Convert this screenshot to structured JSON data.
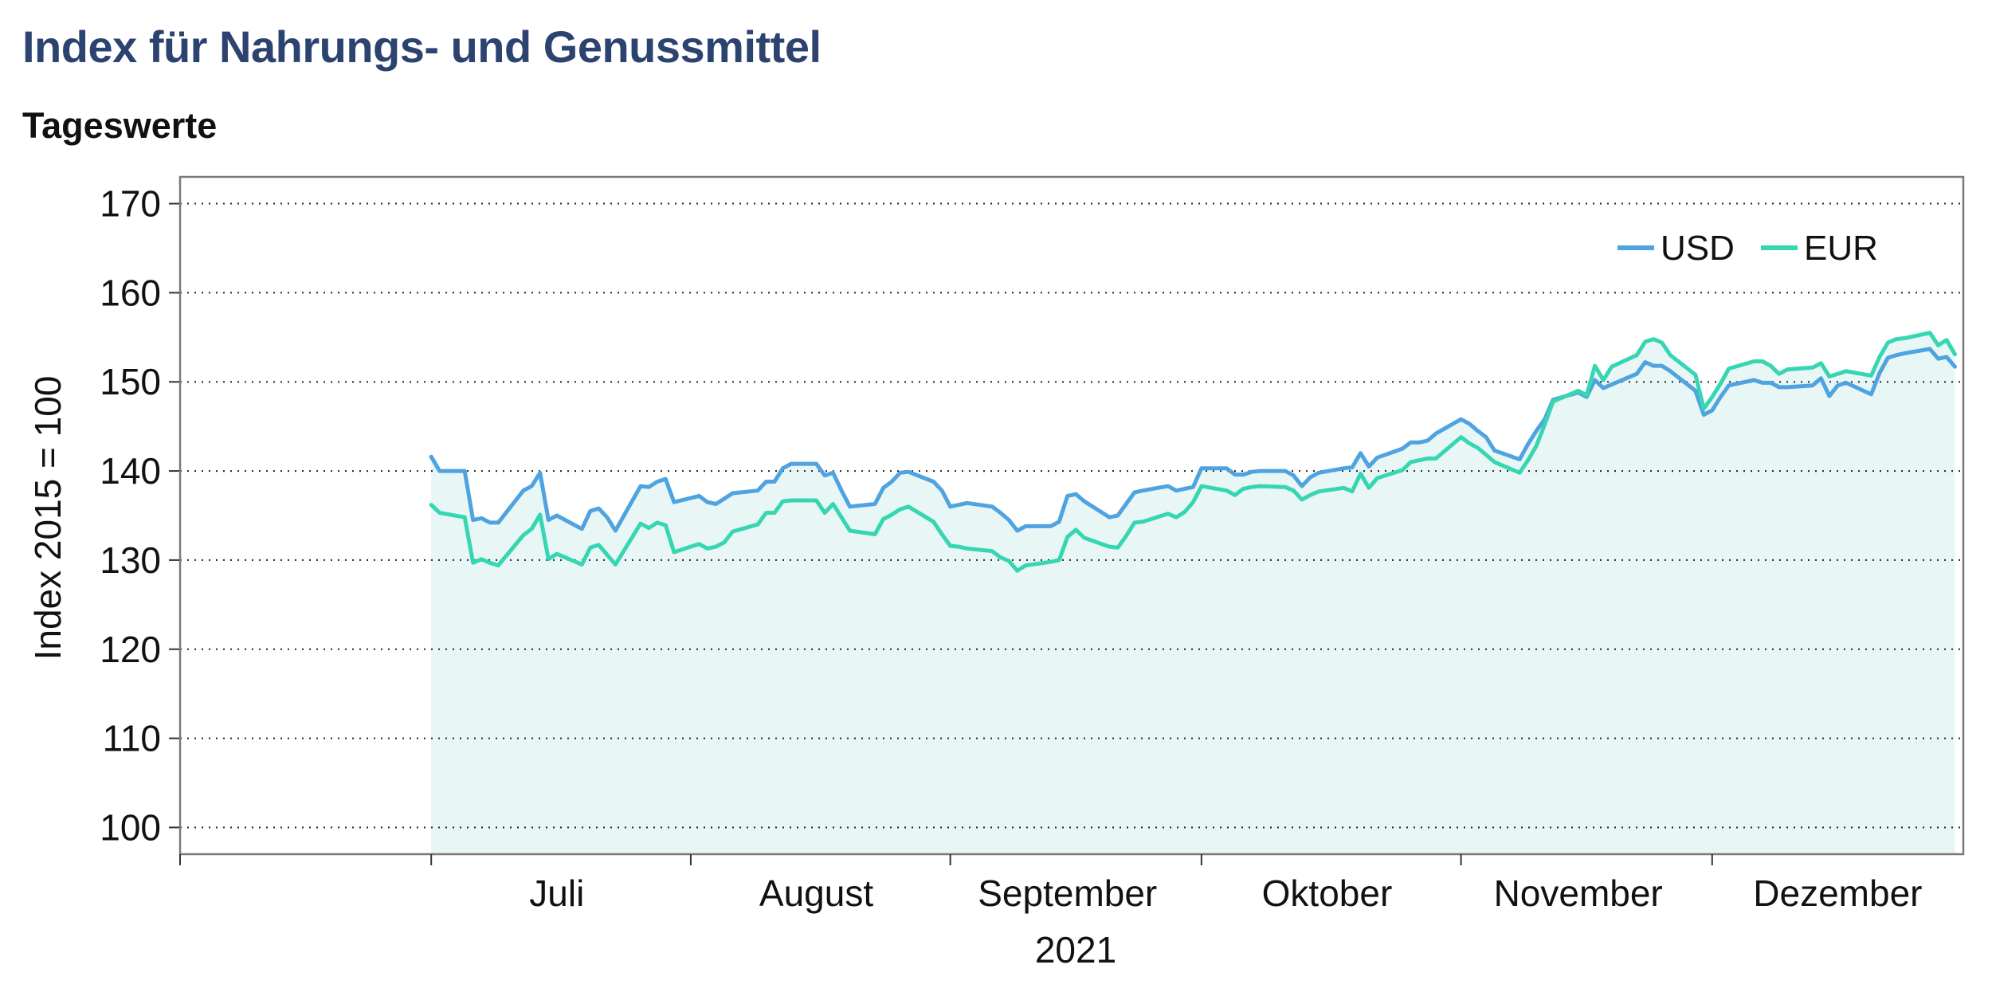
{
  "header": {
    "title": "Index für Nahrungs- und Genussmittel",
    "subtitle": "Tageswerte"
  },
  "chart_data": {
    "type": "line",
    "title": "Index für Nahrungs- und Genussmittel",
    "subtitle": "Tageswerte",
    "ylabel": "Index 2015 = 100",
    "xlabel": "2021",
    "ylim": [
      97,
      173
    ],
    "yticks": [
      100,
      110,
      120,
      130,
      140,
      150,
      160,
      170
    ],
    "x_range": [
      "2021-06-01",
      "2021-12-31"
    ],
    "month_labels": [
      {
        "label": "Juli",
        "date": "2021-07-16"
      },
      {
        "label": "August",
        "date": "2021-08-16"
      },
      {
        "label": "September",
        "date": "2021-09-15"
      },
      {
        "label": "Oktober",
        "date": "2021-10-16"
      },
      {
        "label": "November",
        "date": "2021-11-15"
      },
      {
        "label": "Dezember",
        "date": "2021-12-16"
      }
    ],
    "legend_position": "top-right",
    "grid": "horizontal dotted",
    "colors": {
      "USD": "#4ea3e0",
      "EUR": "#36d6b2",
      "fill": "#e8f6f6"
    },
    "series": [
      {
        "name": "USD",
        "points": [
          [
            "2021-07-01",
            141.6
          ],
          [
            "2021-07-02",
            140.0
          ],
          [
            "2021-07-05",
            140.0
          ],
          [
            "2021-07-06",
            134.5
          ],
          [
            "2021-07-07",
            134.7
          ],
          [
            "2021-07-08",
            134.2
          ],
          [
            "2021-07-09",
            134.2
          ],
          [
            "2021-07-12",
            137.8
          ],
          [
            "2021-07-13",
            138.3
          ],
          [
            "2021-07-14",
            139.8
          ],
          [
            "2021-07-15",
            134.5
          ],
          [
            "2021-07-16",
            135.0
          ],
          [
            "2021-07-19",
            133.5
          ],
          [
            "2021-07-20",
            135.5
          ],
          [
            "2021-07-21",
            135.8
          ],
          [
            "2021-07-22",
            134.8
          ],
          [
            "2021-07-23",
            133.3
          ],
          [
            "2021-07-26",
            138.3
          ],
          [
            "2021-07-27",
            138.2
          ],
          [
            "2021-07-28",
            138.8
          ],
          [
            "2021-07-29",
            139.1
          ],
          [
            "2021-07-30",
            136.5
          ],
          [
            "2021-08-02",
            137.2
          ],
          [
            "2021-08-03",
            136.5
          ],
          [
            "2021-08-04",
            136.3
          ],
          [
            "2021-08-05",
            136.9
          ],
          [
            "2021-08-06",
            137.5
          ],
          [
            "2021-08-09",
            137.8
          ],
          [
            "2021-08-10",
            138.8
          ],
          [
            "2021-08-11",
            138.8
          ],
          [
            "2021-08-12",
            140.3
          ],
          [
            "2021-08-13",
            140.8
          ],
          [
            "2021-08-16",
            140.8
          ],
          [
            "2021-08-17",
            139.5
          ],
          [
            "2021-08-18",
            139.8
          ],
          [
            "2021-08-19",
            137.8
          ],
          [
            "2021-08-20",
            136.0
          ],
          [
            "2021-08-23",
            136.3
          ],
          [
            "2021-08-24",
            138.1
          ],
          [
            "2021-08-25",
            138.8
          ],
          [
            "2021-08-26",
            139.8
          ],
          [
            "2021-08-27",
            139.9
          ],
          [
            "2021-08-30",
            138.8
          ],
          [
            "2021-08-31",
            137.8
          ],
          [
            "2021-09-01",
            136.0
          ],
          [
            "2021-09-02",
            136.2
          ],
          [
            "2021-09-03",
            136.4
          ],
          [
            "2021-09-06",
            136.0
          ],
          [
            "2021-09-07",
            135.3
          ],
          [
            "2021-09-08",
            134.5
          ],
          [
            "2021-09-09",
            133.3
          ],
          [
            "2021-09-10",
            133.8
          ],
          [
            "2021-09-13",
            133.8
          ],
          [
            "2021-09-14",
            134.3
          ],
          [
            "2021-09-15",
            137.2
          ],
          [
            "2021-09-16",
            137.4
          ],
          [
            "2021-09-17",
            136.6
          ],
          [
            "2021-09-20",
            134.8
          ],
          [
            "2021-09-21",
            135.0
          ],
          [
            "2021-09-22",
            136.3
          ],
          [
            "2021-09-23",
            137.6
          ],
          [
            "2021-09-24",
            137.8
          ],
          [
            "2021-09-27",
            138.3
          ],
          [
            "2021-09-28",
            137.8
          ],
          [
            "2021-09-29",
            138.0
          ],
          [
            "2021-09-30",
            138.2
          ],
          [
            "2021-10-01",
            140.3
          ],
          [
            "2021-10-04",
            140.3
          ],
          [
            "2021-10-05",
            139.6
          ],
          [
            "2021-10-06",
            139.6
          ],
          [
            "2021-10-07",
            139.9
          ],
          [
            "2021-10-08",
            140.0
          ],
          [
            "2021-10-11",
            140.0
          ],
          [
            "2021-10-12",
            139.5
          ],
          [
            "2021-10-13",
            138.3
          ],
          [
            "2021-10-14",
            139.3
          ],
          [
            "2021-10-15",
            139.8
          ],
          [
            "2021-10-18",
            140.3
          ],
          [
            "2021-10-19",
            140.4
          ],
          [
            "2021-10-20",
            142.0
          ],
          [
            "2021-10-21",
            140.5
          ],
          [
            "2021-10-22",
            141.5
          ],
          [
            "2021-10-25",
            142.5
          ],
          [
            "2021-10-26",
            143.2
          ],
          [
            "2021-10-27",
            143.2
          ],
          [
            "2021-10-28",
            143.4
          ],
          [
            "2021-10-29",
            144.2
          ],
          [
            "2021-11-01",
            145.8
          ],
          [
            "2021-11-02",
            145.3
          ],
          [
            "2021-11-03",
            144.5
          ],
          [
            "2021-11-04",
            143.8
          ],
          [
            "2021-11-05",
            142.3
          ],
          [
            "2021-11-08",
            141.3
          ],
          [
            "2021-11-09",
            143.0
          ],
          [
            "2021-11-10",
            144.5
          ],
          [
            "2021-11-11",
            145.8
          ],
          [
            "2021-11-12",
            148.0
          ],
          [
            "2021-11-15",
            148.8
          ],
          [
            "2021-11-16",
            148.3
          ],
          [
            "2021-11-17",
            150.2
          ],
          [
            "2021-11-18",
            149.3
          ],
          [
            "2021-11-19",
            149.7
          ],
          [
            "2021-11-22",
            150.9
          ],
          [
            "2021-11-23",
            152.2
          ],
          [
            "2021-11-24",
            151.8
          ],
          [
            "2021-11-25",
            151.8
          ],
          [
            "2021-11-26",
            151.2
          ],
          [
            "2021-11-29",
            149.0
          ],
          [
            "2021-11-30",
            146.3
          ],
          [
            "2021-12-01",
            146.8
          ],
          [
            "2021-12-02",
            148.3
          ],
          [
            "2021-12-03",
            149.6
          ],
          [
            "2021-12-06",
            150.2
          ],
          [
            "2021-12-07",
            149.9
          ],
          [
            "2021-12-08",
            149.9
          ],
          [
            "2021-12-09",
            149.4
          ],
          [
            "2021-12-10",
            149.4
          ],
          [
            "2021-12-13",
            149.6
          ],
          [
            "2021-12-14",
            150.4
          ],
          [
            "2021-12-15",
            148.4
          ],
          [
            "2021-12-16",
            149.6
          ],
          [
            "2021-12-17",
            149.9
          ],
          [
            "2021-12-20",
            148.6
          ],
          [
            "2021-12-21",
            151.0
          ],
          [
            "2021-12-22",
            152.7
          ],
          [
            "2021-12-23",
            153.0
          ],
          [
            "2021-12-24",
            153.2
          ],
          [
            "2021-12-27",
            153.7
          ],
          [
            "2021-12-28",
            152.6
          ],
          [
            "2021-12-29",
            152.8
          ],
          [
            "2021-12-30",
            151.7
          ]
        ]
      },
      {
        "name": "EUR",
        "points": [
          [
            "2021-07-01",
            136.2
          ],
          [
            "2021-07-02",
            135.3
          ],
          [
            "2021-07-05",
            134.8
          ],
          [
            "2021-07-06",
            129.7
          ],
          [
            "2021-07-07",
            130.1
          ],
          [
            "2021-07-08",
            129.7
          ],
          [
            "2021-07-09",
            129.4
          ],
          [
            "2021-07-12",
            132.8
          ],
          [
            "2021-07-13",
            133.5
          ],
          [
            "2021-07-14",
            135.1
          ],
          [
            "2021-07-15",
            130.1
          ],
          [
            "2021-07-16",
            130.7
          ],
          [
            "2021-07-19",
            129.5
          ],
          [
            "2021-07-20",
            131.4
          ],
          [
            "2021-07-21",
            131.7
          ],
          [
            "2021-07-22",
            130.6
          ],
          [
            "2021-07-23",
            129.5
          ],
          [
            "2021-07-26",
            134.1
          ],
          [
            "2021-07-27",
            133.6
          ],
          [
            "2021-07-28",
            134.2
          ],
          [
            "2021-07-29",
            133.9
          ],
          [
            "2021-07-30",
            130.9
          ],
          [
            "2021-08-02",
            131.8
          ],
          [
            "2021-08-03",
            131.3
          ],
          [
            "2021-08-04",
            131.5
          ],
          [
            "2021-08-05",
            132.0
          ],
          [
            "2021-08-06",
            133.2
          ],
          [
            "2021-08-09",
            134.0
          ],
          [
            "2021-08-10",
            135.3
          ],
          [
            "2021-08-11",
            135.3
          ],
          [
            "2021-08-12",
            136.6
          ],
          [
            "2021-08-13",
            136.7
          ],
          [
            "2021-08-16",
            136.7
          ],
          [
            "2021-08-17",
            135.3
          ],
          [
            "2021-08-18",
            136.3
          ],
          [
            "2021-08-19",
            134.8
          ],
          [
            "2021-08-20",
            133.3
          ],
          [
            "2021-08-23",
            132.9
          ],
          [
            "2021-08-24",
            134.6
          ],
          [
            "2021-08-25",
            135.1
          ],
          [
            "2021-08-26",
            135.7
          ],
          [
            "2021-08-27",
            136.0
          ],
          [
            "2021-08-30",
            134.3
          ],
          [
            "2021-08-31",
            132.9
          ],
          [
            "2021-09-01",
            131.6
          ],
          [
            "2021-09-02",
            131.5
          ],
          [
            "2021-09-03",
            131.3
          ],
          [
            "2021-09-06",
            131.0
          ],
          [
            "2021-09-07",
            130.3
          ],
          [
            "2021-09-08",
            129.9
          ],
          [
            "2021-09-09",
            128.8
          ],
          [
            "2021-09-10",
            129.4
          ],
          [
            "2021-09-13",
            129.8
          ],
          [
            "2021-09-14",
            130.0
          ],
          [
            "2021-09-15",
            132.6
          ],
          [
            "2021-09-16",
            133.4
          ],
          [
            "2021-09-17",
            132.5
          ],
          [
            "2021-09-20",
            131.5
          ],
          [
            "2021-09-21",
            131.4
          ],
          [
            "2021-09-22",
            132.7
          ],
          [
            "2021-09-23",
            134.2
          ],
          [
            "2021-09-24",
            134.3
          ],
          [
            "2021-09-27",
            135.2
          ],
          [
            "2021-09-28",
            134.8
          ],
          [
            "2021-09-29",
            135.4
          ],
          [
            "2021-09-30",
            136.5
          ],
          [
            "2021-10-01",
            138.3
          ],
          [
            "2021-10-04",
            137.8
          ],
          [
            "2021-10-05",
            137.3
          ],
          [
            "2021-10-06",
            138.0
          ],
          [
            "2021-10-07",
            138.2
          ],
          [
            "2021-10-08",
            138.3
          ],
          [
            "2021-10-11",
            138.2
          ],
          [
            "2021-10-12",
            137.8
          ],
          [
            "2021-10-13",
            136.8
          ],
          [
            "2021-10-14",
            137.3
          ],
          [
            "2021-10-15",
            137.7
          ],
          [
            "2021-10-18",
            138.1
          ],
          [
            "2021-10-19",
            137.7
          ],
          [
            "2021-10-20",
            139.7
          ],
          [
            "2021-10-21",
            138.1
          ],
          [
            "2021-10-22",
            139.2
          ],
          [
            "2021-10-25",
            140.1
          ],
          [
            "2021-10-26",
            141.0
          ],
          [
            "2021-10-27",
            141.2
          ],
          [
            "2021-10-28",
            141.4
          ],
          [
            "2021-10-29",
            141.4
          ],
          [
            "2021-11-01",
            143.8
          ],
          [
            "2021-11-02",
            143.1
          ],
          [
            "2021-11-03",
            142.6
          ],
          [
            "2021-11-04",
            141.8
          ],
          [
            "2021-11-05",
            141.0
          ],
          [
            "2021-11-08",
            139.8
          ],
          [
            "2021-11-09",
            141.2
          ],
          [
            "2021-11-10",
            142.8
          ],
          [
            "2021-11-11",
            145.2
          ],
          [
            "2021-11-12",
            147.8
          ],
          [
            "2021-11-15",
            149.0
          ],
          [
            "2021-11-16",
            148.5
          ],
          [
            "2021-11-17",
            151.8
          ],
          [
            "2021-11-18",
            150.2
          ],
          [
            "2021-11-19",
            151.7
          ],
          [
            "2021-11-22",
            153.0
          ],
          [
            "2021-11-23",
            154.5
          ],
          [
            "2021-11-24",
            154.8
          ],
          [
            "2021-11-25",
            154.4
          ],
          [
            "2021-11-26",
            153.0
          ],
          [
            "2021-11-29",
            150.8
          ],
          [
            "2021-11-30",
            147.0
          ],
          [
            "2021-12-01",
            148.3
          ],
          [
            "2021-12-02",
            149.8
          ],
          [
            "2021-12-03",
            151.5
          ],
          [
            "2021-12-06",
            152.3
          ],
          [
            "2021-12-07",
            152.3
          ],
          [
            "2021-12-08",
            151.8
          ],
          [
            "2021-12-09",
            150.9
          ],
          [
            "2021-12-10",
            151.4
          ],
          [
            "2021-12-13",
            151.6
          ],
          [
            "2021-12-14",
            152.1
          ],
          [
            "2021-12-15",
            150.6
          ],
          [
            "2021-12-16",
            150.9
          ],
          [
            "2021-12-17",
            151.2
          ],
          [
            "2021-12-20",
            150.7
          ],
          [
            "2021-12-21",
            152.8
          ],
          [
            "2021-12-22",
            154.4
          ],
          [
            "2021-12-23",
            154.8
          ],
          [
            "2021-12-24",
            154.9
          ],
          [
            "2021-12-27",
            155.5
          ],
          [
            "2021-12-28",
            154.1
          ],
          [
            "2021-12-29",
            154.7
          ],
          [
            "2021-12-30",
            153.1
          ]
        ]
      }
    ]
  }
}
